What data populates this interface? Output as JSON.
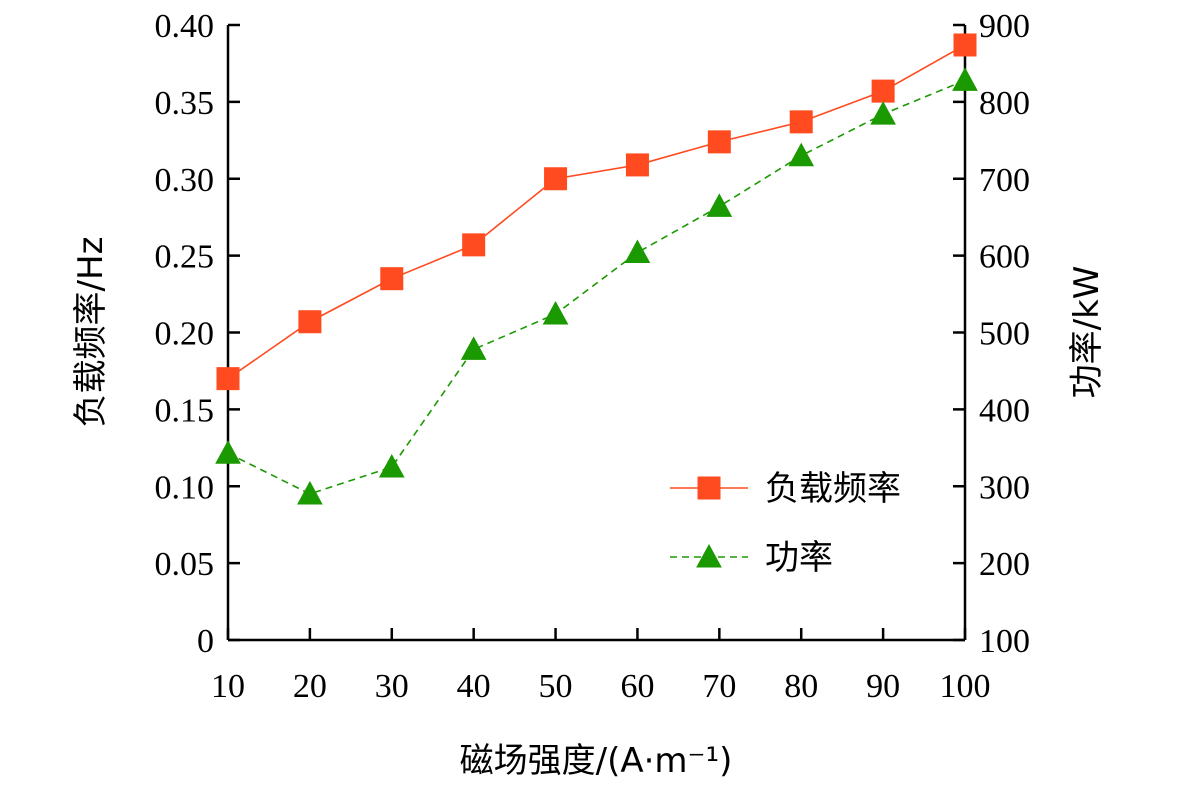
{
  "chart_data": {
    "type": "line",
    "x": [
      10,
      20,
      30,
      40,
      50,
      60,
      70,
      80,
      90,
      100
    ],
    "x_ticks": [
      "10",
      "20",
      "30",
      "40",
      "50",
      "60",
      "70",
      "80",
      "90",
      "100"
    ],
    "xlabel": "磁场强度/(A·m⁻¹)",
    "ylabel_left": "负载频率/Hz",
    "ylabel_right": "功率/kW",
    "ylim_left": [
      0,
      0.4
    ],
    "ylim_right": [
      100,
      900
    ],
    "yticks_left": [
      "0",
      "0.05",
      "0.10",
      "0.15",
      "0.20",
      "0.25",
      "0.30",
      "0.35",
      "0.40"
    ],
    "yticks_right": [
      "100",
      "200",
      "300",
      "400",
      "500",
      "600",
      "700",
      "800",
      "900"
    ],
    "series": [
      {
        "name": "负载频率",
        "axis": "left",
        "marker": "square",
        "line_style": "solid",
        "color": "#ff4b1f",
        "values": [
          0.17,
          0.207,
          0.235,
          0.257,
          0.3,
          0.309,
          0.324,
          0.337,
          0.357,
          0.387
        ]
      },
      {
        "name": "功率",
        "axis": "right",
        "marker": "triangle",
        "line_style": "dashed",
        "color": "#1a9900",
        "values": [
          343,
          290,
          325,
          478,
          524,
          604,
          664,
          730,
          784,
          828
        ]
      }
    ],
    "legend": "center-right"
  }
}
